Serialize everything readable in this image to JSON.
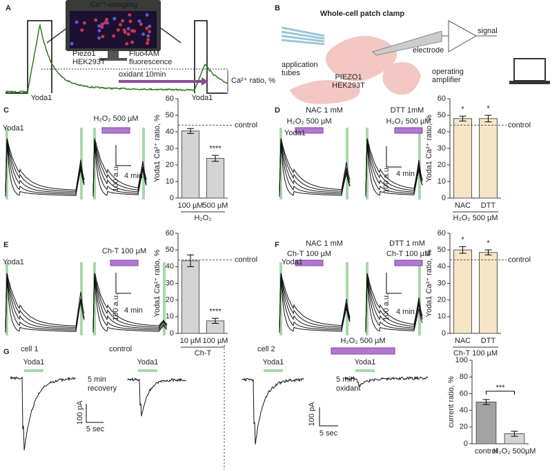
{
  "labels": [
    "A",
    "Ca²⁺-imaging",
    "Piezo1",
    "HEK293T",
    "Fluo4AM",
    "fluorescence",
    "Yoda1",
    "oxidant 10min",
    "Yoda1",
    "Ca²⁺ ratio, %",
    "B",
    "Whole-cell patch clamp",
    "application",
    "tubes",
    "electrode",
    "signal",
    "PIEZO1",
    "HEK293T",
    "operating",
    "amplifier",
    "C",
    "Yoda1",
    "H₂O₂ 500 µM",
    "100 a.u.",
    "4 min",
    "D",
    "NAC 1 mM",
    "H₂O₂ 500 µM",
    "Yoda1",
    "DTT 1mM",
    "H₂O₂ 500 µM",
    "100 a.u.",
    "4 min",
    "E",
    "Yoda1",
    "Ch-T 100 µM",
    "100 a.u.",
    "4 min",
    "F",
    "NAC 1 mM",
    "Ch-T 100 µM",
    "Yoda1",
    "DTT 1 mM",
    "Ch-T 100 µM",
    "100 a.u.",
    "4 min",
    "G",
    "cell 1",
    "control",
    "Yoda1",
    "Yoda1",
    "5 min",
    "recovery",
    "100 pA",
    "5 sec",
    "cell 2",
    "H₂O₂ 500 µM",
    "Yoda1",
    "Yoda1",
    "5 min",
    "oxidant",
    "100 pA",
    "5 sec"
  ],
  "chart_data": [
    {
      "type": "bar",
      "ylabel": "Yoda1 Ca²⁺ ratio, %",
      "categories": [
        "100 µM",
        "500 µM"
      ],
      "xlabel": "H₂O₂",
      "values": [
        40.5,
        24
      ],
      "errors": [
        1.5,
        1.8
      ],
      "colors": [
        "#d4d4d4",
        "#d4d4d4"
      ],
      "ylim": [
        0,
        60
      ],
      "yticks": [
        0,
        10,
        20,
        30,
        40,
        50,
        60
      ],
      "reference": {
        "value": 44,
        "label": "control"
      },
      "annotations": [
        {
          "text": "****",
          "category": "500 µM"
        }
      ]
    },
    {
      "type": "bar",
      "ylabel": "Yoda1 Ca²⁺ ratio, %",
      "categories": [
        "NAC",
        "DTT"
      ],
      "xlabel": "H₂O₂ 500 µM",
      "values": [
        48,
        48
      ],
      "errors": [
        1.5,
        2
      ],
      "colors": [
        "#f7e6c6",
        "#f7e6c6"
      ],
      "ylim": [
        0,
        60
      ],
      "yticks": [
        0,
        10,
        20,
        30,
        40,
        50,
        60
      ],
      "reference": {
        "value": 44,
        "label": "control"
      },
      "annotations": [
        {
          "text": "*",
          "category": "NAC"
        },
        {
          "text": "*",
          "category": "DTT"
        }
      ]
    },
    {
      "type": "bar",
      "ylabel": "Yoda1 Ca²⁺ ratio, %",
      "categories": [
        "10 µM",
        "100 µM"
      ],
      "xlabel": "Ch-T",
      "values": [
        43.5,
        7.5
      ],
      "errors": [
        3.5,
        1.5
      ],
      "colors": [
        "#d4d4d4",
        "#d4d4d4"
      ],
      "ylim": [
        0,
        60
      ],
      "yticks": [
        0,
        10,
        20,
        30,
        40,
        50,
        60
      ],
      "reference": {
        "value": 44,
        "label": "control"
      },
      "annotations": [
        {
          "text": "****",
          "category": "100 µM"
        }
      ]
    },
    {
      "type": "bar",
      "ylabel": "Yoda1 Ca²⁺ ratio, %",
      "categories": [
        "NAC",
        "DTT"
      ],
      "xlabel": "Ch-T 100 µM",
      "values": [
        50,
        48.5
      ],
      "errors": [
        2,
        1.5
      ],
      "colors": [
        "#f7e6c6",
        "#f7e6c6"
      ],
      "ylim": [
        0,
        60
      ],
      "yticks": [
        0,
        10,
        20,
        30,
        40,
        50,
        60
      ],
      "reference": {
        "value": 44,
        "label": "control"
      },
      "annotations": [
        {
          "text": "*",
          "category": "NAC"
        },
        {
          "text": "*",
          "category": "DTT"
        }
      ]
    },
    {
      "type": "bar",
      "ylabel": "current ratio, %",
      "categories": [
        "control",
        "H₂O₂ 500µM"
      ],
      "values": [
        50,
        12
      ],
      "errors": [
        3,
        3
      ],
      "colors": [
        "#a3a3a3",
        "#d4d4d4"
      ],
      "ylim": [
        0,
        100
      ],
      "yticks": [
        0,
        20,
        40,
        60,
        80,
        100
      ],
      "annotations": [
        {
          "text": "***",
          "categories": [
            "control",
            "H₂O₂ 500µM"
          ]
        }
      ]
    }
  ]
}
